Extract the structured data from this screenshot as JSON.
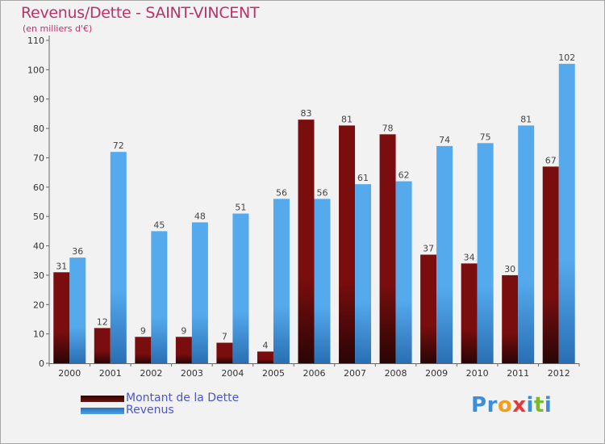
{
  "chart_data": {
    "type": "bar",
    "title": "Revenus/Dette - SAINT-VINCENT",
    "subtitle": "(en milliers d'€)",
    "categories": [
      "2000",
      "2001",
      "2002",
      "2003",
      "2004",
      "2005",
      "2006",
      "2007",
      "2008",
      "2009",
      "2010",
      "2011",
      "2012"
    ],
    "series": [
      {
        "name": "Montant de la Dette",
        "color": "#7a0e0e",
        "values": [
          31,
          12,
          9,
          9,
          7,
          4,
          83,
          81,
          78,
          37,
          34,
          30,
          67
        ]
      },
      {
        "name": "Revenus",
        "color": "#4aa0e6",
        "values": [
          36,
          72,
          45,
          48,
          51,
          56,
          56,
          61,
          62,
          74,
          75,
          81,
          102
        ]
      }
    ],
    "ylim": [
      0,
      110
    ],
    "yticks": [
      0,
      10,
      20,
      30,
      40,
      50,
      60,
      70,
      80,
      90,
      100,
      110
    ],
    "xlabel": "",
    "ylabel": "",
    "grid": false,
    "legend": "bottom-left"
  },
  "logo": {
    "letters": [
      "P",
      "r",
      "o",
      "x",
      "i",
      "t",
      "i"
    ],
    "colors": [
      "#3a8fd8",
      "#3a8fd8",
      "#f0a020",
      "#e03a3a",
      "#3a8fd8",
      "#7ab82e",
      "#3a8fd8"
    ]
  }
}
